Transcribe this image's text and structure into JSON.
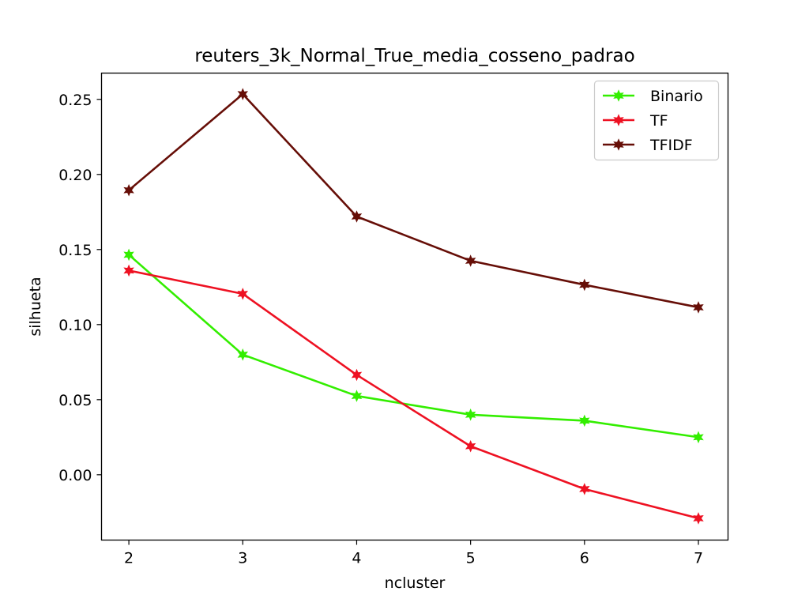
{
  "chart_data": {
    "type": "line",
    "title": "reuters_3k_Normal_True_media_cosseno_padrao",
    "xlabel": "ncluster",
    "ylabel": "silhueta",
    "x": [
      2,
      3,
      4,
      5,
      6,
      7
    ],
    "xlim": [
      1.76,
      7.26
    ],
    "ylim": [
      -0.0435,
      0.2675
    ],
    "xticks": [
      2,
      3,
      4,
      5,
      6,
      7
    ],
    "xtick_labels": [
      "2",
      "3",
      "4",
      "5",
      "6",
      "7"
    ],
    "yticks": [
      0.0,
      0.05,
      0.1,
      0.15,
      0.2,
      0.25
    ],
    "ytick_labels": [
      "0.00",
      "0.05",
      "0.10",
      "0.15",
      "0.20",
      "0.25"
    ],
    "grid": false,
    "legend_position": "top-right",
    "marker": "star",
    "series": [
      {
        "name": "Binario",
        "color": "#33ee00",
        "values": [
          0.1465,
          0.08,
          0.0525,
          0.04,
          0.036,
          0.025
        ]
      },
      {
        "name": "TF",
        "color": "#ee1122",
        "values": [
          0.136,
          0.1205,
          0.0665,
          0.019,
          -0.0095,
          -0.029
        ]
      },
      {
        "name": "TFIDF",
        "color": "#660e07",
        "values": [
          0.1895,
          0.2535,
          0.172,
          0.1425,
          0.1265,
          0.1115
        ]
      }
    ]
  }
}
